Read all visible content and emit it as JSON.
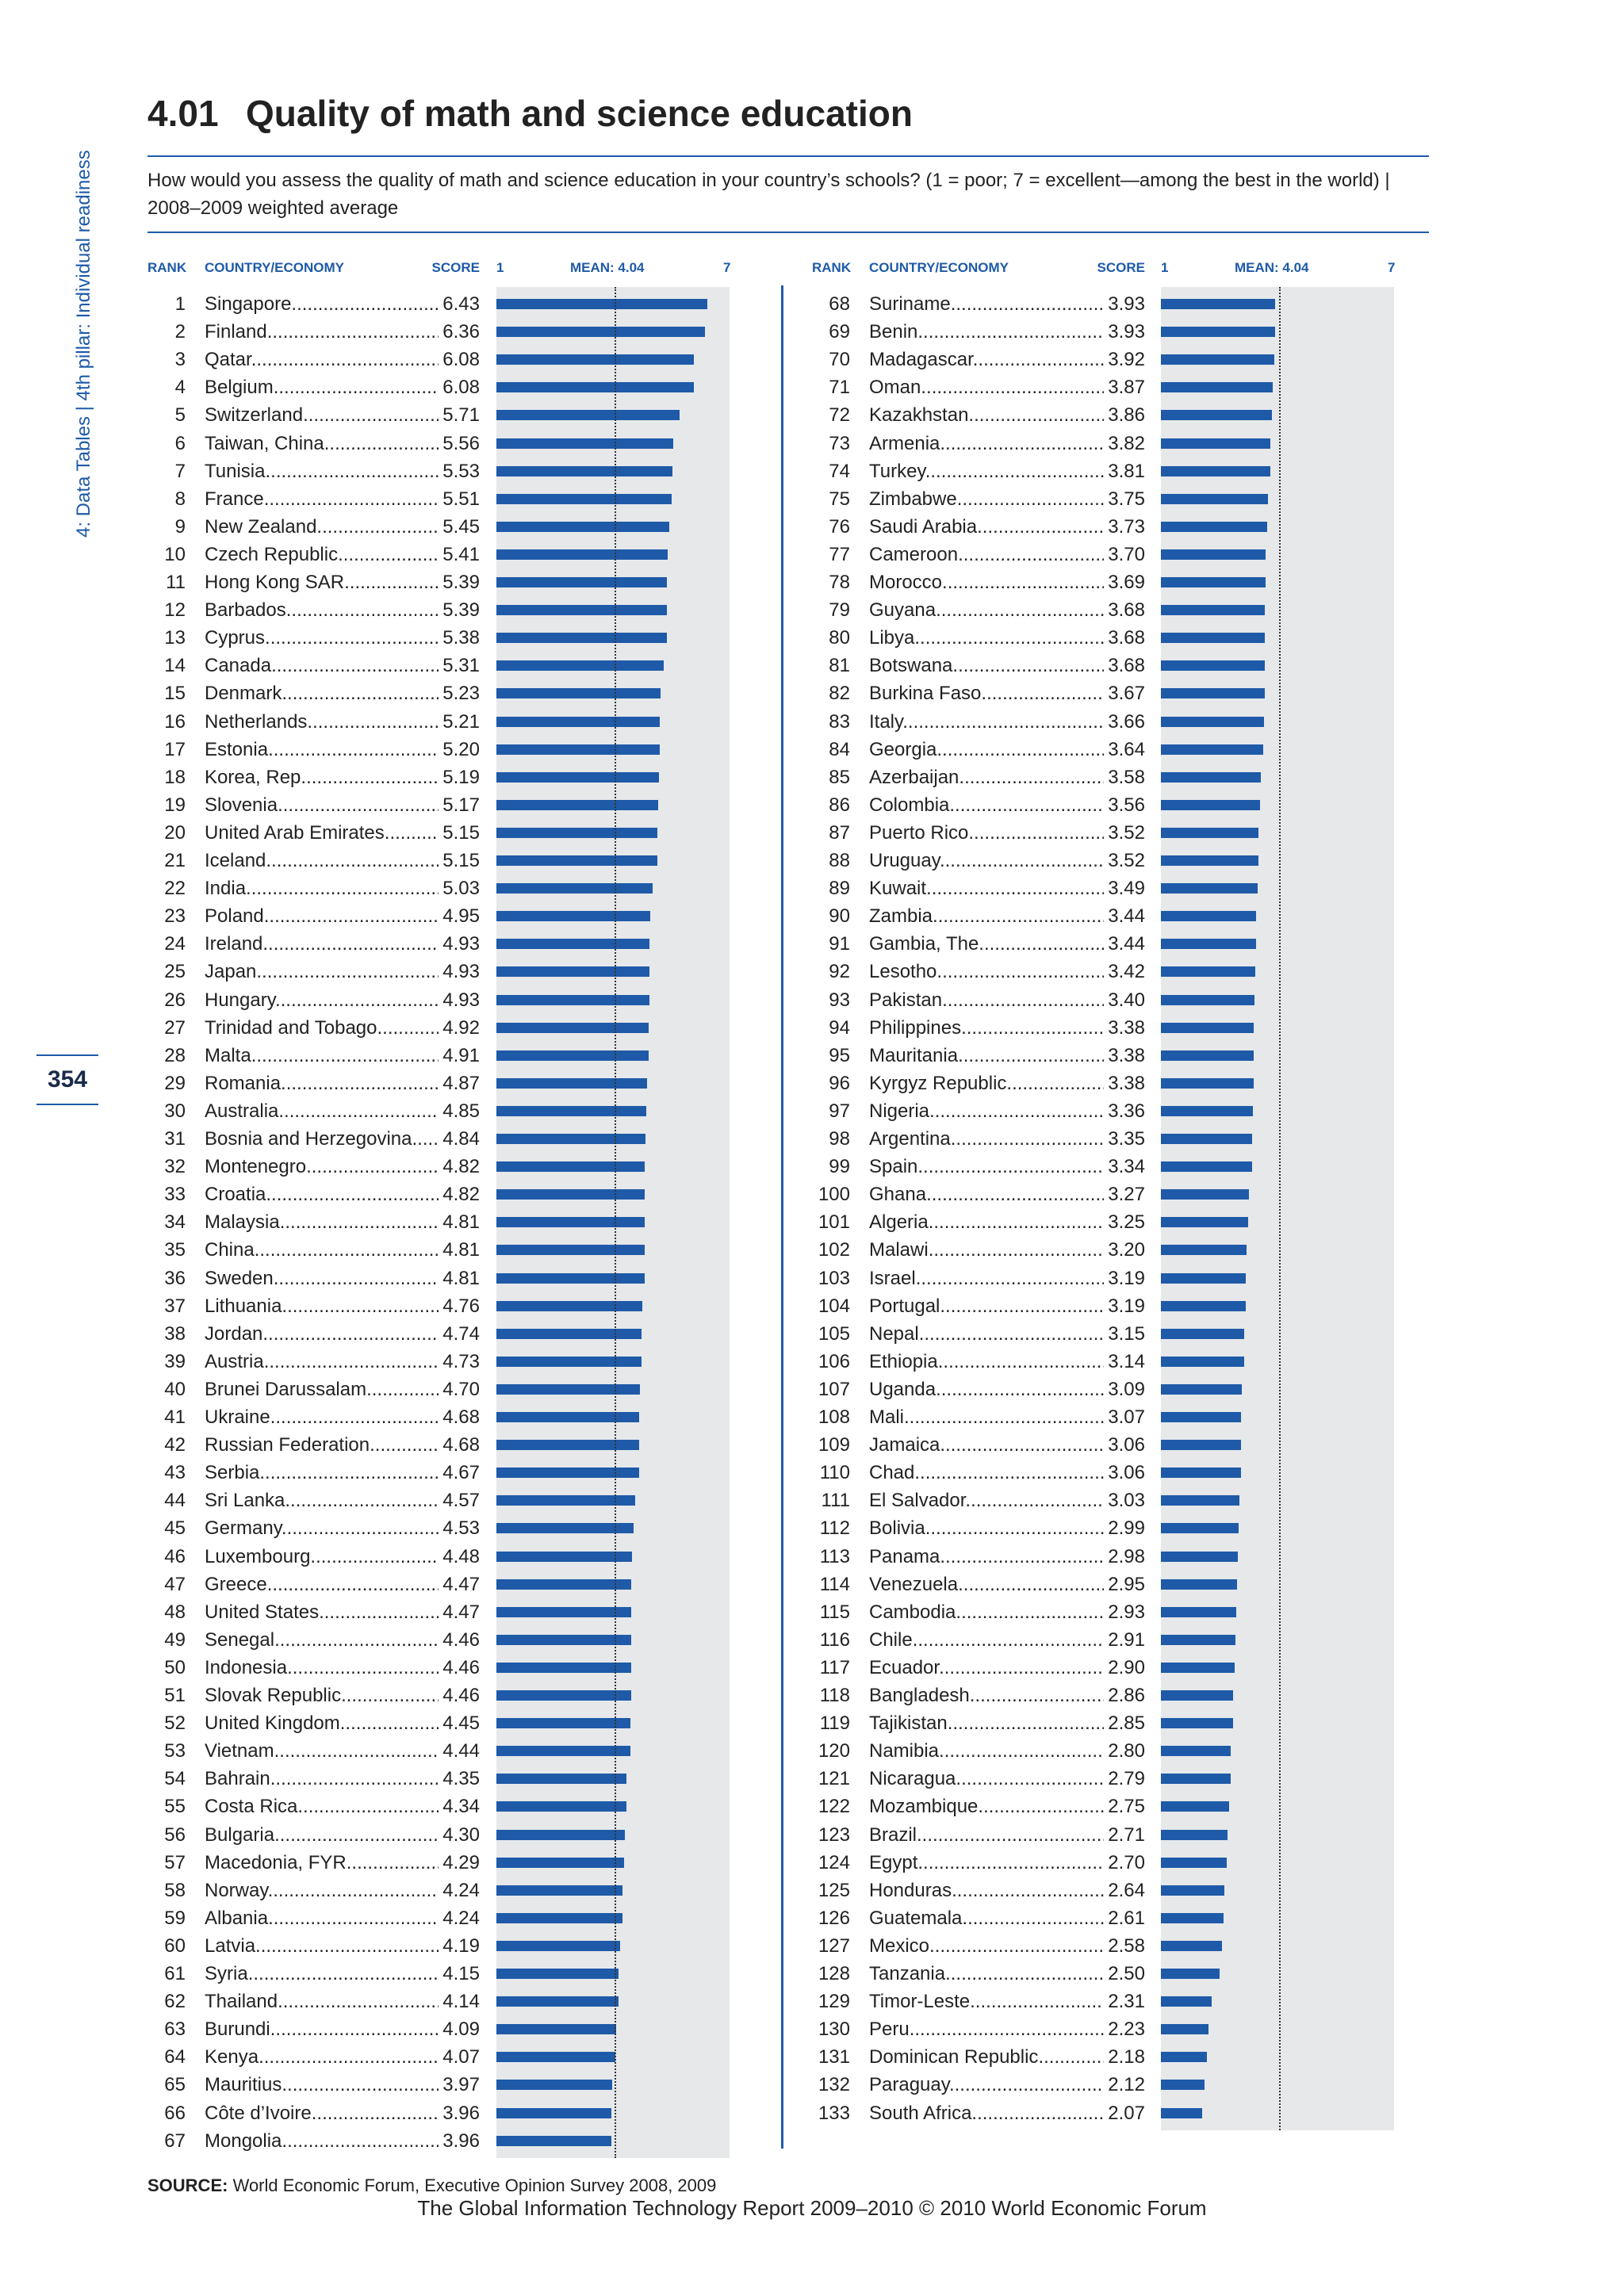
{
  "sidebar": {
    "text": "4: Data Tables  |  4th pillar: Individual readiness"
  },
  "page_number": "354",
  "header": {
    "number": "4.01",
    "title": "Quality of math and science education"
  },
  "question": "How would you assess the quality of math and science education in your country’s schools? (1 = poor; 7 = excellent—among the best in the world)  |  2008–2009 weighted average",
  "columns": {
    "rank": "RANK",
    "country": "COUNTRY/ECONOMY",
    "score": "SCORE",
    "scale_min": "1",
    "mean": "MEAN: 4.04",
    "scale_max": "7"
  },
  "scale": {
    "min": 1,
    "max": 7,
    "mean": 4.04
  },
  "colors": {
    "bar": "#1e5aa8",
    "track": "#e6e8ea",
    "accent": "#1e5aa8"
  },
  "rows": [
    {
      "rank": "1",
      "country": "Singapore",
      "score": "6.43"
    },
    {
      "rank": "2",
      "country": "Finland",
      "score": "6.36"
    },
    {
      "rank": "3",
      "country": "Qatar",
      "score": "6.08"
    },
    {
      "rank": "4",
      "country": "Belgium",
      "score": "6.08"
    },
    {
      "rank": "5",
      "country": "Switzerland",
      "score": "5.71"
    },
    {
      "rank": "6",
      "country": "Taiwan, China",
      "score": "5.56"
    },
    {
      "rank": "7",
      "country": "Tunisia",
      "score": "5.53"
    },
    {
      "rank": "8",
      "country": "France",
      "score": "5.51"
    },
    {
      "rank": "9",
      "country": "New Zealand",
      "score": "5.45"
    },
    {
      "rank": "10",
      "country": "Czech Republic",
      "score": "5.41"
    },
    {
      "rank": "11",
      "country": "Hong Kong SAR",
      "score": "5.39"
    },
    {
      "rank": "12",
      "country": "Barbados",
      "score": "5.39"
    },
    {
      "rank": "13",
      "country": "Cyprus",
      "score": "5.38"
    },
    {
      "rank": "14",
      "country": "Canada",
      "score": "5.31"
    },
    {
      "rank": "15",
      "country": "Denmark",
      "score": "5.23"
    },
    {
      "rank": "16",
      "country": "Netherlands",
      "score": "5.21"
    },
    {
      "rank": "17",
      "country": "Estonia",
      "score": "5.20"
    },
    {
      "rank": "18",
      "country": "Korea, Rep.",
      "score": "5.19"
    },
    {
      "rank": "19",
      "country": "Slovenia",
      "score": "5.17"
    },
    {
      "rank": "20",
      "country": "United Arab Emirates",
      "score": "5.15"
    },
    {
      "rank": "21",
      "country": "Iceland",
      "score": "5.15"
    },
    {
      "rank": "22",
      "country": "India",
      "score": "5.03"
    },
    {
      "rank": "23",
      "country": "Poland",
      "score": "4.95"
    },
    {
      "rank": "24",
      "country": "Ireland",
      "score": "4.93"
    },
    {
      "rank": "25",
      "country": "Japan",
      "score": "4.93"
    },
    {
      "rank": "26",
      "country": "Hungary",
      "score": "4.93"
    },
    {
      "rank": "27",
      "country": "Trinidad and Tobago",
      "score": "4.92"
    },
    {
      "rank": "28",
      "country": "Malta",
      "score": "4.91"
    },
    {
      "rank": "29",
      "country": "Romania",
      "score": "4.87"
    },
    {
      "rank": "30",
      "country": "Australia",
      "score": "4.85"
    },
    {
      "rank": "31",
      "country": "Bosnia and Herzegovina",
      "score": "4.84"
    },
    {
      "rank": "32",
      "country": "Montenegro",
      "score": "4.82"
    },
    {
      "rank": "33",
      "country": "Croatia",
      "score": "4.82"
    },
    {
      "rank": "34",
      "country": "Malaysia",
      "score": "4.81"
    },
    {
      "rank": "35",
      "country": "China",
      "score": "4.81"
    },
    {
      "rank": "36",
      "country": "Sweden",
      "score": "4.81"
    },
    {
      "rank": "37",
      "country": "Lithuania",
      "score": "4.76"
    },
    {
      "rank": "38",
      "country": "Jordan",
      "score": "4.74"
    },
    {
      "rank": "39",
      "country": "Austria",
      "score": "4.73"
    },
    {
      "rank": "40",
      "country": "Brunei Darussalam",
      "score": "4.70"
    },
    {
      "rank": "41",
      "country": "Ukraine",
      "score": "4.68"
    },
    {
      "rank": "42",
      "country": "Russian Federation",
      "score": "4.68"
    },
    {
      "rank": "43",
      "country": "Serbia",
      "score": "4.67"
    },
    {
      "rank": "44",
      "country": "Sri Lanka",
      "score": "4.57"
    },
    {
      "rank": "45",
      "country": "Germany",
      "score": "4.53"
    },
    {
      "rank": "46",
      "country": "Luxembourg",
      "score": "4.48"
    },
    {
      "rank": "47",
      "country": "Greece",
      "score": "4.47"
    },
    {
      "rank": "48",
      "country": "United States",
      "score": "4.47"
    },
    {
      "rank": "49",
      "country": "Senegal",
      "score": "4.46"
    },
    {
      "rank": "50",
      "country": "Indonesia",
      "score": "4.46"
    },
    {
      "rank": "51",
      "country": "Slovak Republic",
      "score": "4.46"
    },
    {
      "rank": "52",
      "country": "United Kingdom",
      "score": "4.45"
    },
    {
      "rank": "53",
      "country": "Vietnam",
      "score": "4.44"
    },
    {
      "rank": "54",
      "country": "Bahrain",
      "score": "4.35"
    },
    {
      "rank": "55",
      "country": "Costa Rica",
      "score": "4.34"
    },
    {
      "rank": "56",
      "country": "Bulgaria",
      "score": "4.30"
    },
    {
      "rank": "57",
      "country": "Macedonia, FYR",
      "score": "4.29"
    },
    {
      "rank": "58",
      "country": "Norway",
      "score": "4.24"
    },
    {
      "rank": "59",
      "country": "Albania",
      "score": "4.24"
    },
    {
      "rank": "60",
      "country": "Latvia",
      "score": "4.19"
    },
    {
      "rank": "61",
      "country": "Syria",
      "score": "4.15"
    },
    {
      "rank": "62",
      "country": "Thailand",
      "score": "4.14"
    },
    {
      "rank": "63",
      "country": "Burundi",
      "score": "4.09"
    },
    {
      "rank": "64",
      "country": "Kenya",
      "score": "4.07"
    },
    {
      "rank": "65",
      "country": "Mauritius",
      "score": "3.97"
    },
    {
      "rank": "66",
      "country": "Côte d’Ivoire",
      "score": "3.96"
    },
    {
      "rank": "67",
      "country": "Mongolia",
      "score": "3.96"
    },
    {
      "rank": "68",
      "country": "Suriname",
      "score": "3.93"
    },
    {
      "rank": "69",
      "country": "Benin",
      "score": "3.93"
    },
    {
      "rank": "70",
      "country": "Madagascar",
      "score": "3.92"
    },
    {
      "rank": "71",
      "country": "Oman",
      "score": "3.87"
    },
    {
      "rank": "72",
      "country": "Kazakhstan",
      "score": "3.86"
    },
    {
      "rank": "73",
      "country": "Armenia",
      "score": "3.82"
    },
    {
      "rank": "74",
      "country": "Turkey",
      "score": "3.81"
    },
    {
      "rank": "75",
      "country": "Zimbabwe",
      "score": "3.75"
    },
    {
      "rank": "76",
      "country": "Saudi Arabia",
      "score": "3.73"
    },
    {
      "rank": "77",
      "country": "Cameroon",
      "score": "3.70"
    },
    {
      "rank": "78",
      "country": "Morocco",
      "score": "3.69"
    },
    {
      "rank": "79",
      "country": "Guyana",
      "score": "3.68"
    },
    {
      "rank": "80",
      "country": "Libya",
      "score": "3.68"
    },
    {
      "rank": "81",
      "country": "Botswana",
      "score": "3.68"
    },
    {
      "rank": "82",
      "country": "Burkina Faso",
      "score": "3.67"
    },
    {
      "rank": "83",
      "country": "Italy",
      "score": "3.66"
    },
    {
      "rank": "84",
      "country": "Georgia",
      "score": "3.64"
    },
    {
      "rank": "85",
      "country": "Azerbaijan",
      "score": "3.58"
    },
    {
      "rank": "86",
      "country": "Colombia",
      "score": "3.56"
    },
    {
      "rank": "87",
      "country": "Puerto Rico",
      "score": "3.52"
    },
    {
      "rank": "88",
      "country": "Uruguay",
      "score": "3.52"
    },
    {
      "rank": "89",
      "country": "Kuwait",
      "score": "3.49"
    },
    {
      "rank": "90",
      "country": "Zambia",
      "score": "3.44"
    },
    {
      "rank": "91",
      "country": "Gambia, The",
      "score": "3.44"
    },
    {
      "rank": "92",
      "country": "Lesotho",
      "score": "3.42"
    },
    {
      "rank": "93",
      "country": "Pakistan",
      "score": "3.40"
    },
    {
      "rank": "94",
      "country": "Philippines",
      "score": "3.38"
    },
    {
      "rank": "95",
      "country": "Mauritania",
      "score": "3.38"
    },
    {
      "rank": "96",
      "country": "Kyrgyz Republic",
      "score": "3.38"
    },
    {
      "rank": "97",
      "country": "Nigeria",
      "score": "3.36"
    },
    {
      "rank": "98",
      "country": "Argentina",
      "score": "3.35"
    },
    {
      "rank": "99",
      "country": "Spain",
      "score": "3.34"
    },
    {
      "rank": "100",
      "country": "Ghana",
      "score": "3.27"
    },
    {
      "rank": "101",
      "country": "Algeria",
      "score": "3.25"
    },
    {
      "rank": "102",
      "country": "Malawi",
      "score": "3.20"
    },
    {
      "rank": "103",
      "country": "Israel",
      "score": "3.19"
    },
    {
      "rank": "104",
      "country": "Portugal",
      "score": "3.19"
    },
    {
      "rank": "105",
      "country": "Nepal",
      "score": "3.15"
    },
    {
      "rank": "106",
      "country": "Ethiopia",
      "score": "3.14"
    },
    {
      "rank": "107",
      "country": "Uganda",
      "score": "3.09"
    },
    {
      "rank": "108",
      "country": "Mali",
      "score": "3.07"
    },
    {
      "rank": "109",
      "country": "Jamaica",
      "score": "3.06"
    },
    {
      "rank": "110",
      "country": "Chad",
      "score": "3.06"
    },
    {
      "rank": "111",
      "country": "El Salvador",
      "score": "3.03"
    },
    {
      "rank": "112",
      "country": "Bolivia",
      "score": "2.99"
    },
    {
      "rank": "113",
      "country": "Panama",
      "score": "2.98"
    },
    {
      "rank": "114",
      "country": "Venezuela",
      "score": "2.95"
    },
    {
      "rank": "115",
      "country": "Cambodia",
      "score": "2.93"
    },
    {
      "rank": "116",
      "country": "Chile",
      "score": "2.91"
    },
    {
      "rank": "117",
      "country": "Ecuador",
      "score": "2.90"
    },
    {
      "rank": "118",
      "country": "Bangladesh",
      "score": "2.86"
    },
    {
      "rank": "119",
      "country": "Tajikistan",
      "score": "2.85"
    },
    {
      "rank": "120",
      "country": "Namibia",
      "score": "2.80"
    },
    {
      "rank": "121",
      "country": "Nicaragua",
      "score": "2.79"
    },
    {
      "rank": "122",
      "country": "Mozambique",
      "score": "2.75"
    },
    {
      "rank": "123",
      "country": "Brazil",
      "score": "2.71"
    },
    {
      "rank": "124",
      "country": "Egypt",
      "score": "2.70"
    },
    {
      "rank": "125",
      "country": "Honduras",
      "score": "2.64"
    },
    {
      "rank": "126",
      "country": "Guatemala",
      "score": "2.61"
    },
    {
      "rank": "127",
      "country": "Mexico",
      "score": "2.58"
    },
    {
      "rank": "128",
      "country": "Tanzania",
      "score": "2.50"
    },
    {
      "rank": "129",
      "country": "Timor-Leste",
      "score": "2.31"
    },
    {
      "rank": "130",
      "country": "Peru",
      "score": "2.23"
    },
    {
      "rank": "131",
      "country": "Dominican Republic",
      "score": "2.18"
    },
    {
      "rank": "132",
      "country": "Paraguay",
      "score": "2.12"
    },
    {
      "rank": "133",
      "country": "South Africa",
      "score": "2.07"
    }
  ],
  "source": {
    "label": "SOURCE:",
    "text": "World Economic Forum, Executive Opinion Survey 2008, 2009"
  },
  "footer": "The Global Information Technology Report 2009–2010 © 2010 World Economic Forum"
}
